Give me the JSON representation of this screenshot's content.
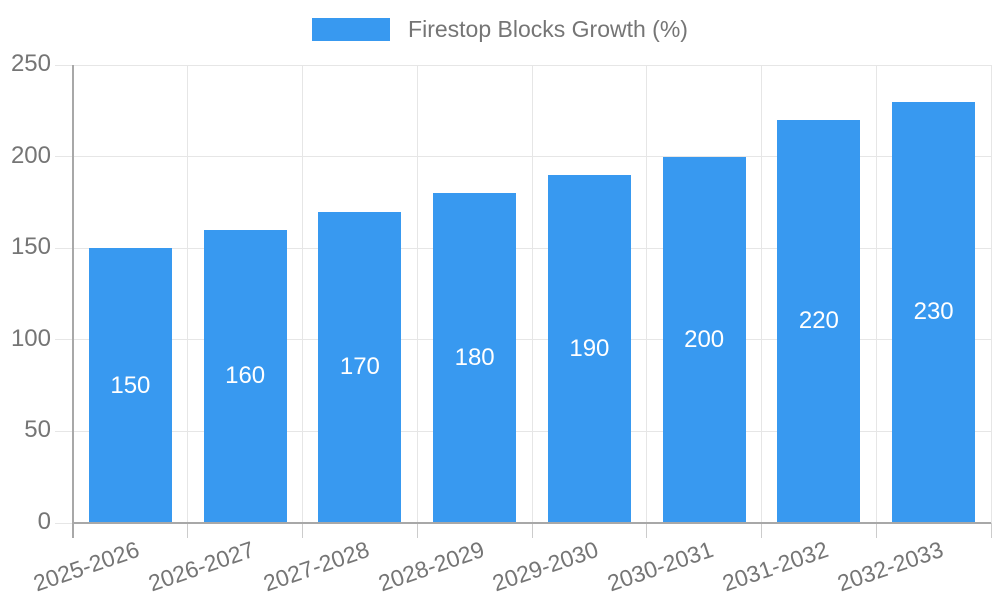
{
  "chart_data": {
    "type": "bar",
    "title": "",
    "legend_label": "Firestop Blocks Growth (%)",
    "legend_position": "top",
    "categories": [
      "2025-2026",
      "2026-2027",
      "2027-2028",
      "2028-2029",
      "2029-2030",
      "2030-2031",
      "2031-2032",
      "2032-2033"
    ],
    "values": [
      150,
      160,
      170,
      180,
      190,
      200,
      220,
      230
    ],
    "xlabel": "",
    "ylabel": "",
    "ylim": [
      0,
      250
    ],
    "yticks": [
      0,
      50,
      100,
      150,
      200,
      250
    ],
    "grid": true,
    "bar_value_labels_shown": true,
    "colors": {
      "bar": "#3899f0",
      "bar_label": "#ffffff",
      "axis_text": "#757575",
      "legend_text": "#757575",
      "gridline": "#e6e6e6",
      "axis_line": "#a8a8a8",
      "tick": "#cccccc",
      "background": "#ffffff"
    }
  }
}
